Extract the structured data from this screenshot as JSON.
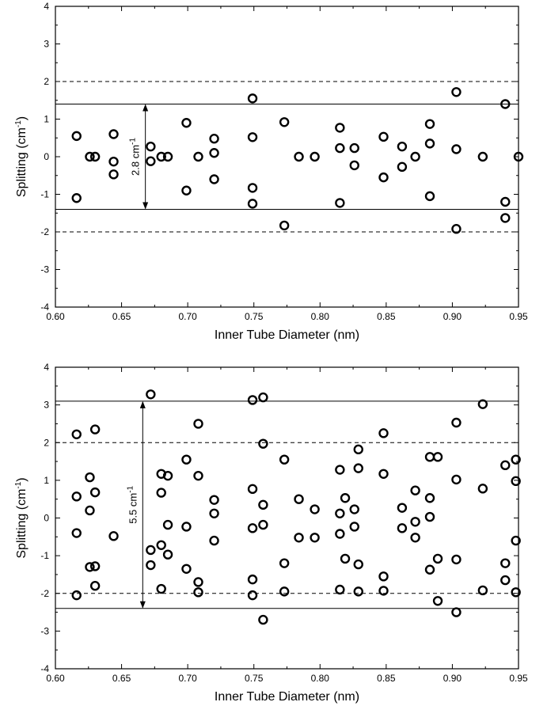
{
  "chart_data": [
    {
      "type": "scatter",
      "xlabel": "Inner Tube Diameter (nm)",
      "ylabel_main": "Splitting (cm",
      "ylabel_sup": "-1",
      "ylabel_close": ")",
      "xlim": [
        0.6,
        0.95
      ],
      "ylim": [
        -4,
        4
      ],
      "xticks": [
        "0.60",
        "0.65",
        "0.70",
        "0.75",
        "0.80",
        "0.85",
        "0.90",
        "0.95"
      ],
      "yticks": [
        "-4",
        "-3",
        "-2",
        "-1",
        "0",
        "1",
        "2",
        "3",
        "4"
      ],
      "solid_lines": [
        1.4,
        -1.4
      ],
      "dashed_lines": [
        2,
        -2
      ],
      "annotation": {
        "text": "2.8 cm",
        "sup": "-1",
        "x": 0.668,
        "y_from": -1.4,
        "y_to": 1.4
      },
      "points": [
        [
          0.616,
          0.55
        ],
        [
          0.616,
          -1.1
        ],
        [
          0.626,
          0.0
        ],
        [
          0.63,
          0.0
        ],
        [
          0.644,
          0.6
        ],
        [
          0.644,
          -0.13
        ],
        [
          0.644,
          -0.47
        ],
        [
          0.672,
          0.27
        ],
        [
          0.672,
          -0.12
        ],
        [
          0.68,
          0.0
        ],
        [
          0.685,
          0.0
        ],
        [
          0.699,
          0.9
        ],
        [
          0.699,
          -0.9
        ],
        [
          0.708,
          0.0
        ],
        [
          0.72,
          0.48
        ],
        [
          0.72,
          0.1
        ],
        [
          0.72,
          -0.6
        ],
        [
          0.749,
          1.55
        ],
        [
          0.749,
          0.52
        ],
        [
          0.749,
          -0.83
        ],
        [
          0.749,
          -1.25
        ],
        [
          0.773,
          0.92
        ],
        [
          0.773,
          -1.83
        ],
        [
          0.784,
          0.0
        ],
        [
          0.796,
          0.0
        ],
        [
          0.815,
          0.77
        ],
        [
          0.815,
          0.23
        ],
        [
          0.815,
          -1.23
        ],
        [
          0.826,
          0.23
        ],
        [
          0.826,
          -0.23
        ],
        [
          0.848,
          0.53
        ],
        [
          0.848,
          -0.55
        ],
        [
          0.862,
          0.27
        ],
        [
          0.862,
          -0.27
        ],
        [
          0.872,
          0.0
        ],
        [
          0.883,
          0.87
        ],
        [
          0.883,
          0.35
        ],
        [
          0.883,
          -1.05
        ],
        [
          0.903,
          1.72
        ],
        [
          0.903,
          0.2
        ],
        [
          0.903,
          -1.92
        ],
        [
          0.923,
          0.0
        ],
        [
          0.94,
          1.4
        ],
        [
          0.94,
          -1.2
        ],
        [
          0.94,
          -1.63
        ],
        [
          0.95,
          0.0
        ]
      ]
    },
    {
      "type": "scatter",
      "xlabel": "Inner Tube Diameter (nm)",
      "ylabel_main": "Splitting (cm",
      "ylabel_sup": "-1",
      "ylabel_close": ")",
      "xlim": [
        0.6,
        0.95
      ],
      "ylim": [
        -4,
        4
      ],
      "xticks": [
        "0.60",
        "0.65",
        "0.70",
        "0.75",
        "0.80",
        "0.85",
        "0.90",
        "0.95"
      ],
      "yticks": [
        "-4",
        "-3",
        "-2",
        "-1",
        "0",
        "1",
        "2",
        "3",
        "4"
      ],
      "solid_lines": [
        3.1,
        -2.4
      ],
      "dashed_lines": [
        2,
        -2
      ],
      "annotation": {
        "text": "5.5 cm",
        "sup": "-1",
        "x": 0.666,
        "y_from": -2.4,
        "y_to": 3.1
      },
      "points": [
        [
          0.616,
          2.22
        ],
        [
          0.616,
          0.57
        ],
        [
          0.616,
          -0.4
        ],
        [
          0.616,
          -2.05
        ],
        [
          0.626,
          1.08
        ],
        [
          0.626,
          0.2
        ],
        [
          0.626,
          -1.3
        ],
        [
          0.63,
          2.35
        ],
        [
          0.63,
          0.68
        ],
        [
          0.63,
          -1.28
        ],
        [
          0.63,
          -1.8
        ],
        [
          0.644,
          -0.48
        ],
        [
          0.672,
          3.28
        ],
        [
          0.672,
          -0.85
        ],
        [
          0.672,
          -1.25
        ],
        [
          0.68,
          1.17
        ],
        [
          0.68,
          0.67
        ],
        [
          0.68,
          -0.72
        ],
        [
          0.68,
          -1.88
        ],
        [
          0.685,
          1.12
        ],
        [
          0.685,
          -0.18
        ],
        [
          0.685,
          -0.97
        ],
        [
          0.699,
          1.55
        ],
        [
          0.699,
          -0.23
        ],
        [
          0.699,
          -1.35
        ],
        [
          0.708,
          2.5
        ],
        [
          0.708,
          1.12
        ],
        [
          0.708,
          -1.7
        ],
        [
          0.708,
          -1.97
        ],
        [
          0.72,
          0.48
        ],
        [
          0.72,
          0.12
        ],
        [
          0.72,
          -0.6
        ],
        [
          0.749,
          3.13
        ],
        [
          0.749,
          0.77
        ],
        [
          0.749,
          -0.27
        ],
        [
          0.749,
          -1.63
        ],
        [
          0.749,
          -2.05
        ],
        [
          0.757,
          3.2
        ],
        [
          0.757,
          1.97
        ],
        [
          0.757,
          0.35
        ],
        [
          0.757,
          -0.18
        ],
        [
          0.757,
          -2.7
        ],
        [
          0.773,
          1.55
        ],
        [
          0.773,
          -1.2
        ],
        [
          0.773,
          -1.95
        ],
        [
          0.784,
          0.5
        ],
        [
          0.784,
          -0.52
        ],
        [
          0.796,
          0.23
        ],
        [
          0.796,
          -0.52
        ],
        [
          0.815,
          1.28
        ],
        [
          0.815,
          0.12
        ],
        [
          0.815,
          -0.42
        ],
        [
          0.815,
          -1.9
        ],
        [
          0.819,
          0.53
        ],
        [
          0.819,
          -1.08
        ],
        [
          0.826,
          0.23
        ],
        [
          0.826,
          -0.23
        ],
        [
          0.829,
          1.82
        ],
        [
          0.829,
          1.32
        ],
        [
          0.829,
          -1.23
        ],
        [
          0.829,
          -1.95
        ],
        [
          0.848,
          2.25
        ],
        [
          0.848,
          1.17
        ],
        [
          0.848,
          -1.55
        ],
        [
          0.848,
          -1.93
        ],
        [
          0.862,
          0.27
        ],
        [
          0.862,
          -0.27
        ],
        [
          0.872,
          0.73
        ],
        [
          0.872,
          -0.1
        ],
        [
          0.872,
          -0.52
        ],
        [
          0.883,
          1.62
        ],
        [
          0.883,
          0.53
        ],
        [
          0.883,
          0.03
        ],
        [
          0.883,
          -1.37
        ],
        [
          0.889,
          1.62
        ],
        [
          0.889,
          -1.08
        ],
        [
          0.889,
          -2.2
        ],
        [
          0.903,
          2.53
        ],
        [
          0.903,
          1.02
        ],
        [
          0.903,
          -1.1
        ],
        [
          0.903,
          -2.5
        ],
        [
          0.923,
          3.02
        ],
        [
          0.923,
          0.78
        ],
        [
          0.923,
          -1.92
        ],
        [
          0.94,
          1.4
        ],
        [
          0.94,
          -1.2
        ],
        [
          0.94,
          -1.65
        ],
        [
          0.948,
          1.55
        ],
        [
          0.948,
          0.98
        ],
        [
          0.948,
          -0.6
        ],
        [
          0.948,
          -1.97
        ]
      ]
    }
  ]
}
